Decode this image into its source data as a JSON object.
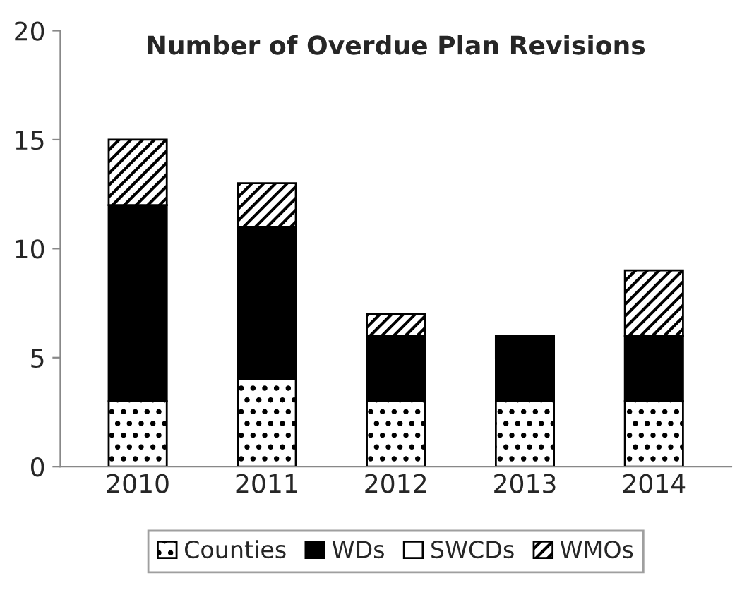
{
  "chart_data": {
    "type": "bar",
    "title": "Number of Overdue Plan Revisions",
    "categories": [
      "2010",
      "2011",
      "2012",
      "2013",
      "2014"
    ],
    "stacked": true,
    "series": [
      {
        "name": "Counties",
        "color": "#000000",
        "values": [
          3,
          4,
          3,
          3,
          3
        ]
      },
      {
        "name": "WDs",
        "color": "#000000",
        "values": [
          9,
          7,
          3,
          3,
          3
        ]
      },
      {
        "name": "SWCDs",
        "color": "#ffffff",
        "values": [
          0,
          0,
          0,
          0,
          0
        ]
      },
      {
        "name": "WMOs",
        "color": "#000000",
        "values": [
          3,
          2,
          1,
          0,
          3
        ]
      }
    ],
    "ylim": [
      0,
      20
    ],
    "yticks": [
      0,
      5,
      10,
      15,
      20
    ],
    "grid": false,
    "legend": "bottom"
  }
}
